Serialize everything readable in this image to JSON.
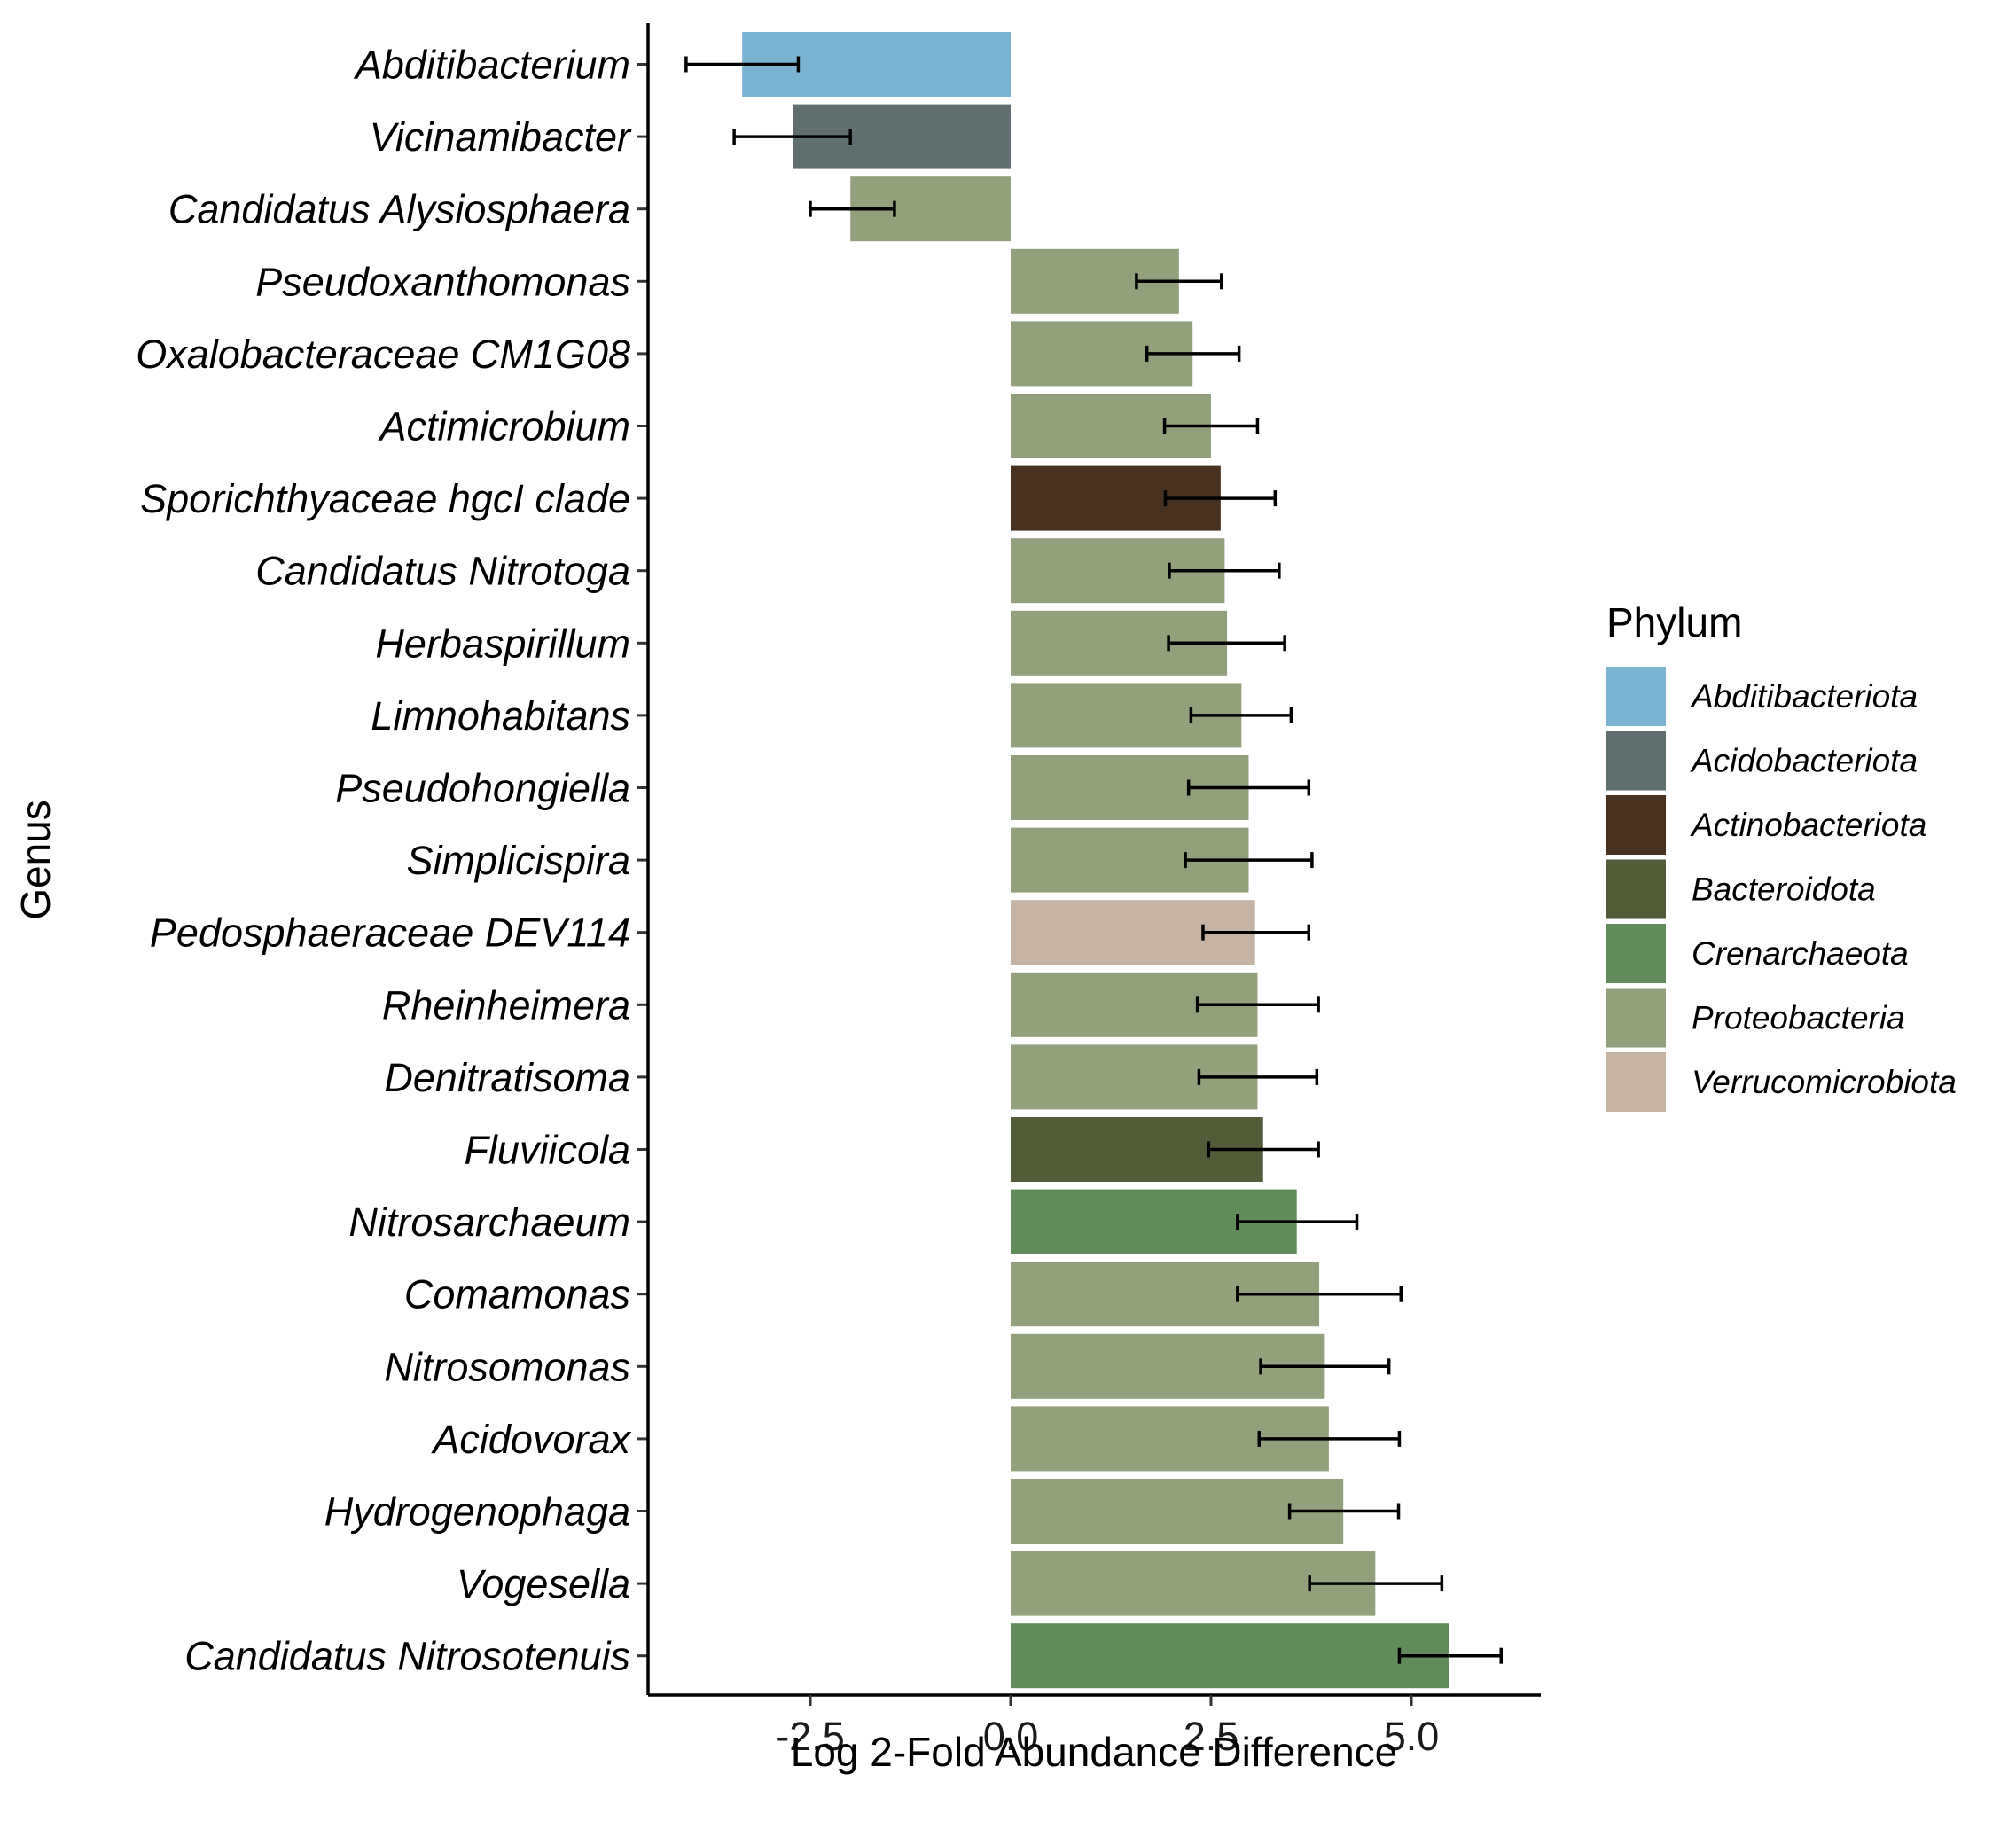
{
  "chart_data": {
    "type": "bar",
    "orientation": "horizontal",
    "xlabel": "Log 2-Fold Abundance Difference",
    "ylabel": "Genus",
    "xlim": [
      -4.6,
      6.7
    ],
    "xticks": [
      -2.5,
      0.0,
      2.5,
      5.0
    ],
    "xtick_labels": [
      "-2.5",
      "0.0",
      "2.5",
      "5.0"
    ],
    "grid": false,
    "legend": {
      "title": "Phylum",
      "placement": "right",
      "entries": [
        {
          "name": "Abditibacteriota",
          "color": "#7bb3d2"
        },
        {
          "name": "Acidobacteriota",
          "color": "#5f6e6e"
        },
        {
          "name": "Actinobacteriota",
          "color": "#48311f"
        },
        {
          "name": "Bacteroidota",
          "color": "#525c39"
        },
        {
          "name": "Crenarchaeota",
          "color": "#5f8c58"
        },
        {
          "name": "Proteobacteria",
          "color": "#92a17b"
        },
        {
          "name": "Verrucomicrobiota",
          "color": "#c5b4a3"
        }
      ]
    },
    "bars": [
      {
        "genus": "Abditibacterium",
        "phylum": "Abditibacteriota",
        "value": -3.35,
        "err_low": -4.05,
        "err_high": -2.65
      },
      {
        "genus": "Vicinamibacter",
        "phylum": "Acidobacteriota",
        "value": -2.72,
        "err_low": -3.45,
        "err_high": -2.0
      },
      {
        "genus": "Candidatus Alysiosphaera",
        "phylum": "Proteobacteria",
        "value": -2.0,
        "err_low": -2.5,
        "err_high": -1.45
      },
      {
        "genus": "Pseudoxanthomonas",
        "phylum": "Proteobacteria",
        "value": 2.1,
        "err_low": 1.57,
        "err_high": 2.63
      },
      {
        "genus": "Oxalobacteraceae CM1G08",
        "phylum": "Proteobacteria",
        "value": 2.27,
        "err_low": 1.7,
        "err_high": 2.85
      },
      {
        "genus": "Actimicrobium",
        "phylum": "Proteobacteria",
        "value": 2.5,
        "err_low": 1.92,
        "err_high": 3.08
      },
      {
        "genus": "Sporichthyaceae hgcI clade",
        "phylum": "Actinobacteriota",
        "value": 2.62,
        "err_low": 1.93,
        "err_high": 3.3
      },
      {
        "genus": "Candidatus Nitrotoga",
        "phylum": "Proteobacteria",
        "value": 2.67,
        "err_low": 1.98,
        "err_high": 3.35
      },
      {
        "genus": "Herbaspirillum",
        "phylum": "Proteobacteria",
        "value": 2.7,
        "err_low": 1.97,
        "err_high": 3.42
      },
      {
        "genus": "Limnohabitans",
        "phylum": "Proteobacteria",
        "value": 2.88,
        "err_low": 2.25,
        "err_high": 3.5
      },
      {
        "genus": "Pseudohongiella",
        "phylum": "Proteobacteria",
        "value": 2.97,
        "err_low": 2.22,
        "err_high": 3.72
      },
      {
        "genus": "Simplicispira",
        "phylum": "Proteobacteria",
        "value": 2.97,
        "err_low": 2.18,
        "err_high": 3.76
      },
      {
        "genus": "Pedosphaeraceae DEV114",
        "phylum": "Verrucomicrobiota",
        "value": 3.05,
        "err_low": 2.4,
        "err_high": 3.72
      },
      {
        "genus": "Rheinheimera",
        "phylum": "Proteobacteria",
        "value": 3.08,
        "err_low": 2.33,
        "err_high": 3.84
      },
      {
        "genus": "Denitratisoma",
        "phylum": "Proteobacteria",
        "value": 3.08,
        "err_low": 2.35,
        "err_high": 3.82
      },
      {
        "genus": "Fluviicola",
        "phylum": "Bacteroidota",
        "value": 3.15,
        "err_low": 2.47,
        "err_high": 3.84
      },
      {
        "genus": "Nitrosarchaeum",
        "phylum": "Crenarchaeota",
        "value": 3.57,
        "err_low": 2.83,
        "err_high": 4.32
      },
      {
        "genus": "Comamonas",
        "phylum": "Proteobacteria",
        "value": 3.85,
        "err_low": 2.83,
        "err_high": 4.87
      },
      {
        "genus": "Nitrosomonas",
        "phylum": "Proteobacteria",
        "value": 3.92,
        "err_low": 3.12,
        "err_high": 4.72
      },
      {
        "genus": "Acidovorax",
        "phylum": "Proteobacteria",
        "value": 3.97,
        "err_low": 3.1,
        "err_high": 4.85
      },
      {
        "genus": "Hydrogenophaga",
        "phylum": "Proteobacteria",
        "value": 4.15,
        "err_low": 3.48,
        "err_high": 4.84
      },
      {
        "genus": "Vogesella",
        "phylum": "Proteobacteria",
        "value": 4.55,
        "err_low": 3.73,
        "err_high": 5.38
      },
      {
        "genus": "Candidatus Nitrosotenuis",
        "phylum": "Crenarchaeota",
        "value": 5.47,
        "err_low": 4.85,
        "err_high": 6.12
      }
    ]
  }
}
